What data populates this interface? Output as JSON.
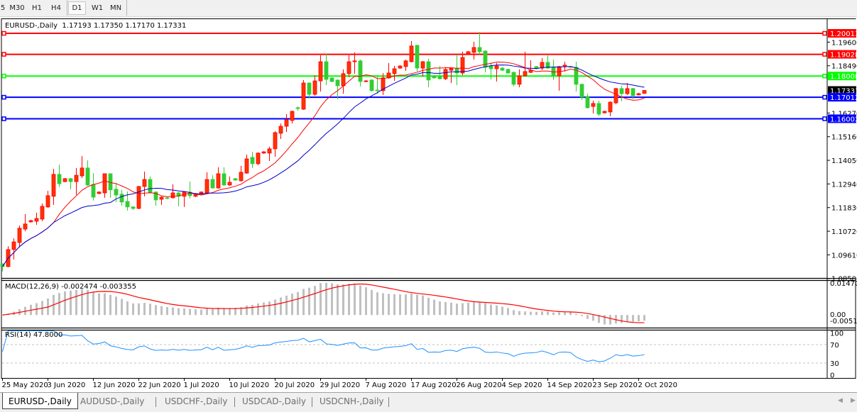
{
  "toolbar": {
    "timeframes": [
      "5",
      "M30",
      "H1",
      "H4",
      "D1",
      "W1",
      "MN"
    ],
    "active": "D1"
  },
  "header": {
    "symbol": "EURUSD-,Daily",
    "ohlc": "1.17193 1.17350 1.17170 1.17331"
  },
  "indicators": {
    "macd_label": "MACD(12,26,9) -0.002474 -0.003355",
    "rsi_label": "RSI(14) 47.8000"
  },
  "tabs": [
    "EURUSD-,Daily",
    "AUDUSD-,Daily",
    "USDCHF-,Daily",
    "USDCAD-,Daily",
    "USDCNH-,Daily"
  ],
  "colors": {
    "bull": "#ff3300",
    "bull_border": "#ff0000",
    "bear": "#32cd32",
    "ma_fast": "#ff0000",
    "ma_slow": "#0000cc",
    "macd_hist": "#c0c0c0",
    "macd_signal": "#ff0000",
    "rsi": "#1e90ff"
  },
  "chart_data": {
    "type": "candlestick",
    "title": "EURUSD-,Daily",
    "x_tick_labels": [
      "25 May 2020",
      "3 Jun 2020",
      "12 Jun 2020",
      "22 Jun 2020",
      "1 Jul 2020",
      "10 Jul 2020",
      "20 Jul 2020",
      "29 Jul 2020",
      "7 Aug 2020",
      "17 Aug 2020",
      "26 Aug 2020",
      "4 Sep 2020",
      "14 Sep 2020",
      "23 Sep 2020",
      "2 Oct 2020"
    ],
    "price_tick_labels": [
      "1.19600",
      "1.18490",
      "1.16270",
      "1.15160",
      "1.14050",
      "1.12940",
      "1.11830",
      "1.10720",
      "1.09610",
      "1.08500"
    ],
    "current_price": "1.17331",
    "ylim": [
      1.085,
      1.2039
    ],
    "horizontal_levels": [
      {
        "price": "1.20013",
        "color": "#ff0000"
      },
      {
        "price": "1.19028",
        "color": "#ff0000"
      },
      {
        "price": "1.18008",
        "color": "#00ff00"
      },
      {
        "price": "1.17012",
        "color": "#0000ff"
      },
      {
        "price": "1.16002",
        "color": "#0000ff"
      }
    ],
    "ohlc_columns": [
      "open",
      "high",
      "low",
      "close"
    ],
    "candles": [
      [
        1.0919,
        1.092,
        1.0883,
        1.0906
      ],
      [
        1.0906,
        1.1002,
        1.0903,
        1.0986
      ],
      [
        1.0986,
        1.1039,
        1.0939,
        1.1022
      ],
      [
        1.1019,
        1.1099,
        1.0996,
        1.1086
      ],
      [
        1.1082,
        1.1152,
        1.1072,
        1.1106
      ],
      [
        1.1116,
        1.1126,
        1.1112,
        1.1122
      ],
      [
        1.1119,
        1.1159,
        1.1102,
        1.1132
      ],
      [
        1.1129,
        1.1202,
        1.1119,
        1.1189
      ],
      [
        1.1186,
        1.1262,
        1.1182,
        1.1239
      ],
      [
        1.1236,
        1.1365,
        1.1196,
        1.1339
      ],
      [
        1.1339,
        1.1385,
        1.1279,
        1.1295
      ],
      [
        1.1305,
        1.1322,
        1.1302,
        1.1319
      ],
      [
        1.1319,
        1.1322,
        1.1269,
        1.1305
      ],
      [
        1.1305,
        1.1369,
        1.1242,
        1.1335
      ],
      [
        1.1332,
        1.1425,
        1.1322,
        1.1369
      ],
      [
        1.1369,
        1.1405,
        1.1285,
        1.1289
      ],
      [
        1.1292,
        1.1345,
        1.1216,
        1.1232
      ],
      [
        1.1249,
        1.1259,
        1.1246,
        1.1256
      ],
      [
        1.1252,
        1.1342,
        1.1229,
        1.1342
      ],
      [
        1.1342,
        1.1342,
        1.1229,
        1.1266
      ],
      [
        1.1269,
        1.1299,
        1.1209,
        1.1242
      ],
      [
        1.1246,
        1.1266,
        1.1192,
        1.1209
      ],
      [
        1.1212,
        1.1259,
        1.1169,
        1.1186
      ],
      [
        1.1186,
        1.1189,
        1.1172,
        1.1179
      ],
      [
        1.1179,
        1.1285,
        1.1176,
        1.1282
      ],
      [
        1.1282,
        1.1352,
        1.1236,
        1.1315
      ],
      [
        1.1315,
        1.1329,
        1.1249,
        1.1252
      ],
      [
        1.1256,
        1.1259,
        1.1192,
        1.1219
      ],
      [
        1.1222,
        1.1236,
        1.1196,
        1.1232
      ],
      [
        1.1229,
        1.1232,
        1.1222,
        1.1226
      ],
      [
        1.1229,
        1.1292,
        1.1226,
        1.1252
      ],
      [
        1.1252,
        1.1256,
        1.1189,
        1.1236
      ],
      [
        1.1236,
        1.1259,
        1.1186,
        1.1256
      ],
      [
        1.1256,
        1.1305,
        1.1226,
        1.1239
      ],
      [
        1.1236,
        1.1252,
        1.1232,
        1.1249
      ],
      [
        1.1249,
        1.1259,
        1.1246,
        1.1256
      ],
      [
        1.1252,
        1.1349,
        1.1249,
        1.1315
      ],
      [
        1.1315,
        1.1335,
        1.1272,
        1.1275
      ],
      [
        1.1275,
        1.1372,
        1.1272,
        1.1342
      ],
      [
        1.1342,
        1.1372,
        1.1285,
        1.1289
      ],
      [
        1.1289,
        1.1329,
        1.1285,
        1.1302
      ],
      [
        1.1319,
        1.1322,
        1.1309,
        1.1312
      ],
      [
        1.1309,
        1.1379,
        1.1305,
        1.1349
      ],
      [
        1.1345,
        1.1432,
        1.1342,
        1.1412
      ],
      [
        1.1419,
        1.1445,
        1.1369,
        1.1389
      ],
      [
        1.1389,
        1.1442,
        1.1382,
        1.1439
      ],
      [
        1.1439,
        1.1448,
        1.1435,
        1.1445
      ],
      [
        1.1439,
        1.1469,
        1.1402,
        1.1459
      ],
      [
        1.1459,
        1.1542,
        1.1422,
        1.1535
      ],
      [
        1.1532,
        1.1578,
        1.1505,
        1.1565
      ],
      [
        1.1565,
        1.1622,
        1.1538,
        1.1595
      ],
      [
        1.1592,
        1.1638,
        1.1578,
        1.1635
      ],
      [
        1.1652,
        1.1658,
        1.1638,
        1.1648
      ],
      [
        1.1645,
        1.1782,
        1.1642,
        1.1768
      ],
      [
        1.1768,
        1.1772,
        1.1695,
        1.1715
      ],
      [
        1.1715,
        1.1805,
        1.1708,
        1.1778
      ],
      [
        1.1778,
        1.1898,
        1.1728,
        1.1868
      ],
      [
        1.1868,
        1.1905,
        1.1758,
        1.1785
      ],
      [
        1.1792,
        1.1795,
        1.1772,
        1.1775
      ],
      [
        1.1782,
        1.1785,
        1.1692,
        1.1755
      ],
      [
        1.1755,
        1.1832,
        1.1718,
        1.1812
      ],
      [
        1.1812,
        1.1898,
        1.1795,
        1.1868
      ],
      [
        1.1868,
        1.1912,
        1.1812,
        1.1872
      ],
      [
        1.1872,
        1.1878,
        1.1752,
        1.1775
      ],
      [
        1.1775,
        1.1782,
        1.1772,
        1.1778
      ],
      [
        1.1782,
        1.1785,
        1.1728,
        1.1732
      ],
      [
        1.1735,
        1.1805,
        1.1718,
        1.1732
      ],
      [
        1.1732,
        1.1815,
        1.1712,
        1.1792
      ],
      [
        1.1792,
        1.1862,
        1.1788,
        1.1815
      ],
      [
        1.1812,
        1.1848,
        1.1778,
        1.1835
      ],
      [
        1.1838,
        1.1852,
        1.1835,
        1.1848
      ],
      [
        1.1845,
        1.1878,
        1.1825,
        1.1872
      ],
      [
        1.1868,
        1.1965,
        1.1865,
        1.1942
      ],
      [
        1.1945,
        1.1948,
        1.1822,
        1.1838
      ],
      [
        1.1838,
        1.1872,
        1.1798,
        1.1868
      ],
      [
        1.1868,
        1.1882,
        1.1748,
        1.1782
      ],
      [
        1.1802,
        1.1805,
        1.1788,
        1.1792
      ],
      [
        1.1798,
        1.1848,
        1.1785,
        1.1788
      ],
      [
        1.1788,
        1.1842,
        1.1782,
        1.1832
      ],
      [
        1.1828,
        1.1842,
        1.1768,
        1.1838
      ],
      [
        1.1838,
        1.1898,
        1.1758,
        1.1815
      ],
      [
        1.1815,
        1.1915,
        1.1805,
        1.1888
      ],
      [
        1.1905,
        1.1918,
        1.1902,
        1.1915
      ],
      [
        1.1912,
        1.1962,
        1.1878,
        1.1935
      ],
      [
        1.1935,
        1.2008,
        1.1898,
        1.1915
      ],
      [
        1.1918,
        1.1922,
        1.1818,
        1.1842
      ],
      [
        1.1848,
        1.1865,
        1.1785,
        1.1835
      ],
      [
        1.1835,
        1.1862,
        1.1775,
        1.1848
      ],
      [
        1.1838,
        1.1842,
        1.1825,
        1.1828
      ],
      [
        1.1832,
        1.1835,
        1.1812,
        1.1815
      ],
      [
        1.1818,
        1.1822,
        1.1752,
        1.1762
      ],
      [
        1.1762,
        1.1832,
        1.1748,
        1.1802
      ],
      [
        1.1802,
        1.1915,
        1.1798,
        1.1822
      ],
      [
        1.1818,
        1.1875,
        1.1815,
        1.1828
      ],
      [
        1.1845,
        1.1848,
        1.1832,
        1.1835
      ],
      [
        1.1838,
        1.1885,
        1.1828,
        1.1865
      ],
      [
        1.1865,
        1.1898,
        1.1835,
        1.1838
      ],
      [
        1.1842,
        1.1878,
        1.1782,
        1.1802
      ],
      [
        1.1802,
        1.1848,
        1.1732,
        1.1845
      ],
      [
        1.1845,
        1.1868,
        1.1822,
        1.1852
      ],
      [
        1.1845,
        1.1848,
        1.184,
        1.1843
      ],
      [
        1.1842,
        1.1868,
        1.1728,
        1.1762
      ],
      [
        1.1762,
        1.1765,
        1.1688,
        1.1702
      ],
      [
        1.1705,
        1.1718,
        1.1648,
        1.1652
      ],
      [
        1.1658,
        1.1685,
        1.1625,
        1.1672
      ],
      [
        1.1672,
        1.1685,
        1.1612,
        1.1622
      ],
      [
        1.1628,
        1.1638,
        1.1625,
        1.1635
      ],
      [
        1.1632,
        1.1682,
        1.1612,
        1.1678
      ],
      [
        1.1675,
        1.1745,
        1.1668,
        1.1742
      ],
      [
        1.1742,
        1.1755,
        1.1682,
        1.1718
      ],
      [
        1.1718,
        1.1768,
        1.1712,
        1.1742
      ],
      [
        1.1742,
        1.1745,
        1.1692,
        1.1708
      ],
      [
        1.1712,
        1.1722,
        1.171,
        1.1718
      ],
      [
        1.17193,
        1.1735,
        1.1717,
        1.17331
      ]
    ],
    "macd": {
      "axis_labels": [
        "0.014706",
        "0.00",
        "-0.005113"
      ],
      "range": [
        -0.005113,
        0.014706
      ]
    },
    "rsi": {
      "axis_labels": [
        "100",
        "70",
        "30",
        "0"
      ],
      "levels": [
        30,
        70
      ],
      "range": [
        0,
        100
      ]
    }
  }
}
